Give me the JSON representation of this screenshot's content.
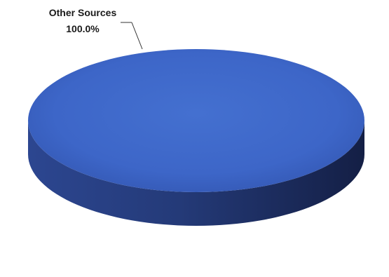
{
  "chart_data": {
    "type": "pie",
    "style": "3d",
    "title": "",
    "slices": [
      {
        "name": "Other Sources",
        "value": 100.0,
        "value_label": "100.0%",
        "color": "#3d66c8",
        "side_color": "#20336e"
      }
    ],
    "legend": "none",
    "labels": "outside-with-leader-line"
  }
}
